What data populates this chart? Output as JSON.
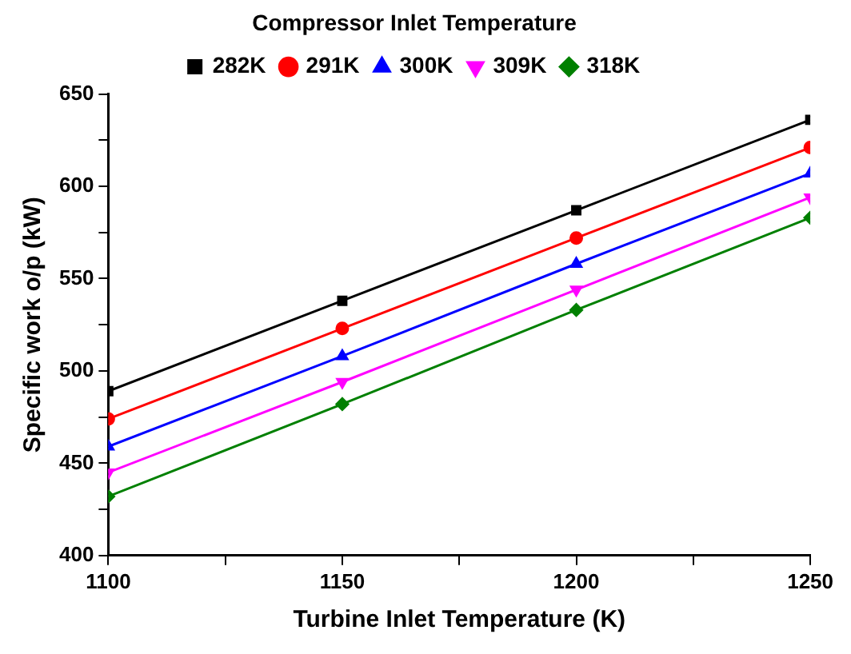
{
  "chart_data": {
    "type": "line",
    "xlabel": "Turbine Inlet Temperature (K)",
    "ylabel": "Specific work o/p (kW)",
    "legend_title": "Compressor Inlet Temperature",
    "legend": "top",
    "grid": false,
    "x": [
      1100,
      1150,
      1200,
      1250
    ],
    "series": [
      {
        "name": "282K",
        "color": "#000000",
        "marker": "square",
        "values": [
          489,
          538,
          587,
          636
        ]
      },
      {
        "name": "291K",
        "color": "#ff0000",
        "marker": "circle",
        "values": [
          474,
          523,
          572,
          621
        ]
      },
      {
        "name": "300K",
        "color": "#0000ff",
        "marker": "triangle",
        "values": [
          459,
          508,
          558,
          607
        ]
      },
      {
        "name": "309K",
        "color": "#ff00ff",
        "marker": "triangle-down",
        "values": [
          445,
          494,
          544,
          594
        ]
      },
      {
        "name": "318K",
        "color": "#008000",
        "marker": "diamond",
        "values": [
          432,
          482,
          533,
          583
        ]
      }
    ],
    "xlim": [
      1100,
      1250
    ],
    "xticks": [
      1100,
      1150,
      1200,
      1250
    ],
    "ylim": [
      400,
      650
    ],
    "yticks": [
      400,
      450,
      500,
      550,
      600,
      650
    ]
  }
}
